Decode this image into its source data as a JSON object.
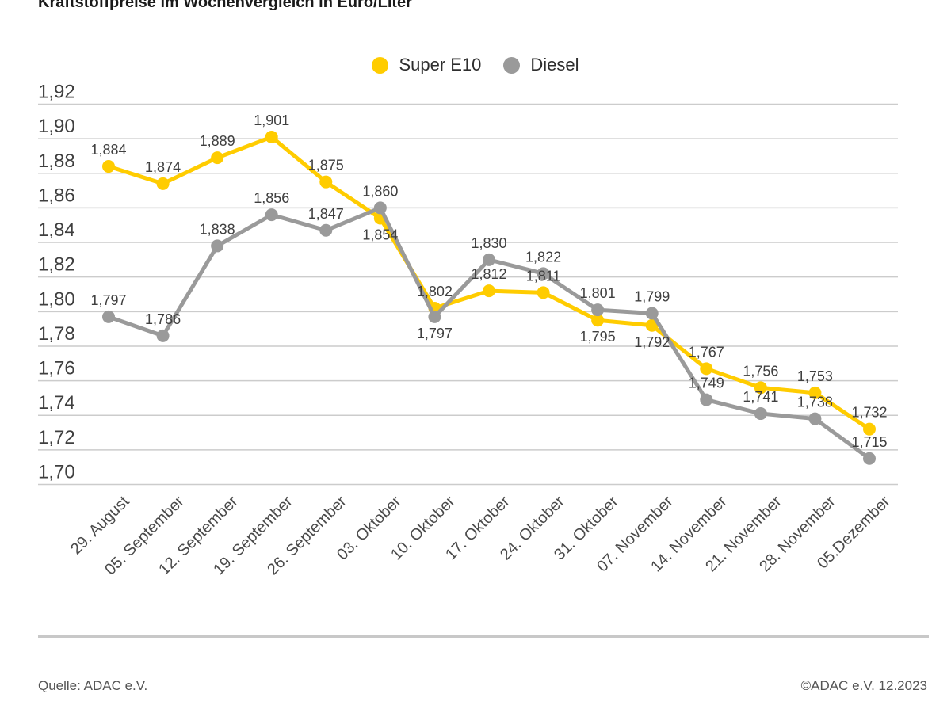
{
  "title": "Kraftstoffpreise im Wochenvergleich in Euro/Liter",
  "legend": [
    {
      "label": "Super E10",
      "color": "#FFCC00"
    },
    {
      "label": "Diesel",
      "color": "#9A9A9A"
    }
  ],
  "footer": {
    "source": "Quelle: ADAC e.V.",
    "copyright": "©ADAC e.V. 12.2023"
  },
  "chart_data": {
    "type": "line",
    "title": "Kraftstoffpreise im Wochenvergleich in Euro/Liter",
    "xlabel": "",
    "ylabel": "",
    "ylim": [
      1.7,
      1.92
    ],
    "grid": "horizontal",
    "legend_position": "top-center",
    "grid_color": "#CCCCCC",
    "text_color": "#3F3F3F",
    "y_ticks": [
      "1,92",
      "1,90",
      "1,88",
      "1,86",
      "1,84",
      "1,82",
      "1,80",
      "1,78",
      "1,76",
      "1,74",
      "1,72",
      "1,70"
    ],
    "categories": [
      "29. August",
      "05. September",
      "12. September",
      "19. September",
      "26. September",
      "03. Oktober",
      "10. Oktober",
      "17. Oktober",
      "24. Oktober",
      "31. Oktober",
      "07. November",
      "14. November",
      "21. November",
      "28. November",
      "05.Dezember"
    ],
    "series": [
      {
        "name": "Super E10",
        "color": "#FFCC00",
        "values": [
          1.884,
          1.874,
          1.889,
          1.901,
          1.875,
          1.854,
          1.802,
          1.812,
          1.811,
          1.795,
          1.792,
          1.767,
          1.756,
          1.753,
          1.732
        ],
        "labels": [
          "1,884",
          "1,874",
          "1,889",
          "1,901",
          "1,875",
          "1,854",
          "1,802",
          "1,812",
          "1,811",
          "1,795",
          "1,792",
          "1,767",
          "1,756",
          "1,753",
          "1,732"
        ],
        "label_positions": [
          "above",
          "above",
          "above",
          "above",
          "above",
          "below",
          "above",
          "above",
          "above",
          "below",
          "below",
          "above",
          "above",
          "above",
          "above"
        ]
      },
      {
        "name": "Diesel",
        "color": "#9A9A9A",
        "values": [
          1.797,
          1.786,
          1.838,
          1.856,
          1.847,
          1.86,
          1.797,
          1.83,
          1.822,
          1.801,
          1.799,
          1.749,
          1.741,
          1.738,
          1.715
        ],
        "labels": [
          "1,797",
          "1,786",
          "1,838",
          "1,856",
          "1,847",
          "1,860",
          "1,797",
          "1,830",
          "1,822",
          "1,801",
          "1,799",
          "1,749",
          "1,741",
          "1,738",
          "1,715"
        ],
        "label_positions": [
          "above",
          "above",
          "above",
          "above",
          "above",
          "above",
          "below",
          "above",
          "above",
          "above",
          "above",
          "above",
          "above",
          "above",
          "above"
        ]
      }
    ]
  }
}
